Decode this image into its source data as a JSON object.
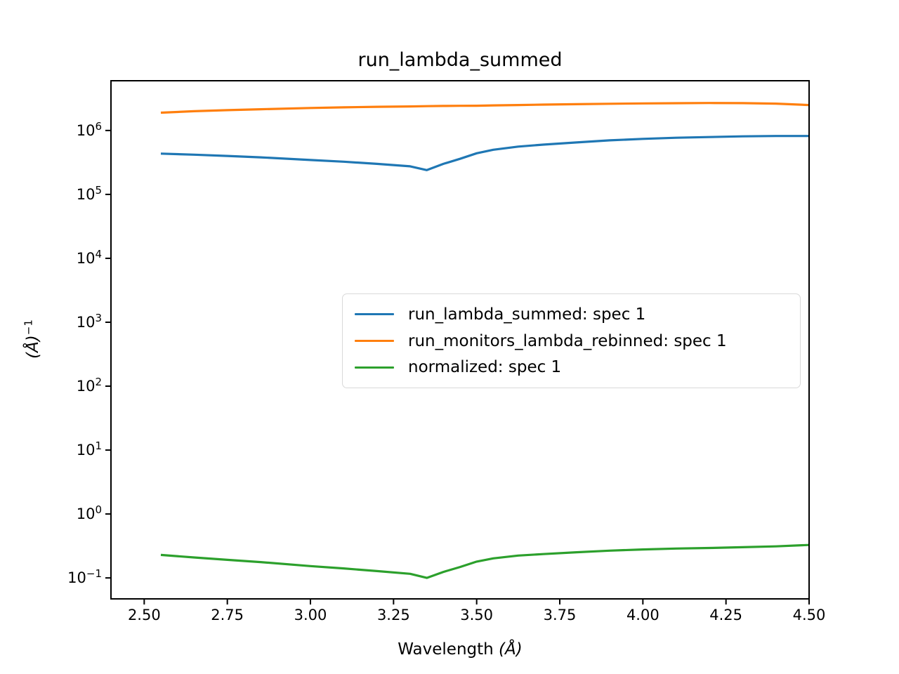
{
  "chart_data": {
    "type": "line",
    "title": "run_lambda_summed",
    "xlabel": "Wavelength (Å)",
    "xlabel_parts": {
      "prefix": "Wavelength ",
      "symbol": "(Å)"
    },
    "ylabel": "(Å)⁻¹",
    "ylabel_parts": {
      "base": "(Å)",
      "sup": "−1"
    },
    "x_scale": "linear",
    "y_scale": "log",
    "xlim": [
      2.4,
      4.5
    ],
    "ylim": [
      0.047,
      6000000
    ],
    "grid": false,
    "legend_position": "center",
    "axis_color": "#000000",
    "background_color": "#ffffff",
    "x_ticks": [
      {
        "value": 2.5,
        "label": "2.50"
      },
      {
        "value": 2.75,
        "label": "2.75"
      },
      {
        "value": 3.0,
        "label": "3.00"
      },
      {
        "value": 3.25,
        "label": "3.25"
      },
      {
        "value": 3.5,
        "label": "3.50"
      },
      {
        "value": 3.75,
        "label": "3.75"
      },
      {
        "value": 4.0,
        "label": "4.00"
      },
      {
        "value": 4.25,
        "label": "4.25"
      },
      {
        "value": 4.5,
        "label": "4.50"
      }
    ],
    "y_ticks": [
      {
        "value": 1000000,
        "label_base": "10",
        "label_exp": "6"
      },
      {
        "value": 100000,
        "label_base": "10",
        "label_exp": "5"
      },
      {
        "value": 10000,
        "label_base": "10",
        "label_exp": "4"
      },
      {
        "value": 1000,
        "label_base": "10",
        "label_exp": "3"
      },
      {
        "value": 100,
        "label_base": "10",
        "label_exp": "2"
      },
      {
        "value": 10,
        "label_base": "10",
        "label_exp": "1"
      },
      {
        "value": 1,
        "label_base": "10",
        "label_exp": "0"
      },
      {
        "value": 0.1,
        "label_base": "10",
        "label_exp": "−1"
      }
    ],
    "x": [
      2.55,
      2.65,
      2.75,
      2.85,
      3.0,
      3.1,
      3.2,
      3.3,
      3.35,
      3.4,
      3.45,
      3.5,
      3.55,
      3.625,
      3.7,
      3.8,
      3.9,
      4.0,
      4.1,
      4.2,
      4.3,
      4.4,
      4.5
    ],
    "series": [
      {
        "name": "run_lambda_summed: spec 1",
        "color": "#1f77b4",
        "values": [
          435000,
          418000,
          400000,
          380000,
          345000,
          325000,
          300000,
          275000,
          240000,
          300000,
          360000,
          440000,
          500000,
          560000,
          600000,
          650000,
          700000,
          740000,
          770000,
          790000,
          810000,
          820000,
          820000
        ]
      },
      {
        "name": "run_monitors_lambda_rebinned: spec 1",
        "color": "#ff7f0e",
        "values": [
          1900000,
          2000000,
          2080000,
          2150000,
          2250000,
          2300000,
          2350000,
          2380000,
          2400000,
          2420000,
          2430000,
          2440000,
          2470000,
          2500000,
          2540000,
          2580000,
          2620000,
          2650000,
          2670000,
          2690000,
          2680000,
          2630000,
          2500000
        ]
      },
      {
        "name": "normalized: spec 1",
        "color": "#2ca02c",
        "values": [
          0.229,
          0.209,
          0.192,
          0.177,
          0.153,
          0.141,
          0.128,
          0.116,
          0.1,
          0.124,
          0.148,
          0.18,
          0.202,
          0.224,
          0.236,
          0.252,
          0.267,
          0.279,
          0.288,
          0.294,
          0.302,
          0.312,
          0.328
        ]
      }
    ]
  }
}
